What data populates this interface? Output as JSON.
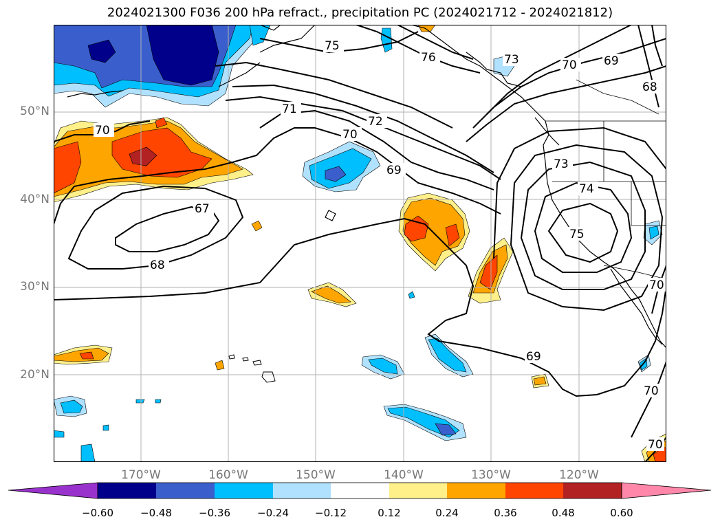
{
  "title": "2024021300 F036 200 hPa refract., precipitation PC (2024021712 - 2024021812)",
  "lat_labels": [
    "50°N",
    "40°N",
    "30°N",
    "20°N"
  ],
  "lon_labels": [
    "170°W",
    "160°W",
    "150°W",
    "140°W",
    "130°W",
    "120°W"
  ],
  "colorbar": {
    "colors": [
      "#9932cc",
      "#00008b",
      "#3a5fcd",
      "#00bfff",
      "#b0e2ff",
      "#ffffff",
      "#fff08a",
      "#ffa500",
      "#ff4500",
      "#b22222",
      "#ff88aa"
    ],
    "ticks": [
      "−0.60",
      "−0.48",
      "−0.36",
      "−0.24",
      "−0.12",
      "0.12",
      "0.24",
      "0.36",
      "0.48",
      "0.60"
    ]
  },
  "contour_labels": [
    "75",
    "76",
    "73",
    "70",
    "69",
    "68",
    "71",
    "72",
    "70",
    "69",
    "67",
    "68",
    "73",
    "74",
    "75",
    "69",
    "70",
    "70",
    "70",
    "70"
  ]
}
